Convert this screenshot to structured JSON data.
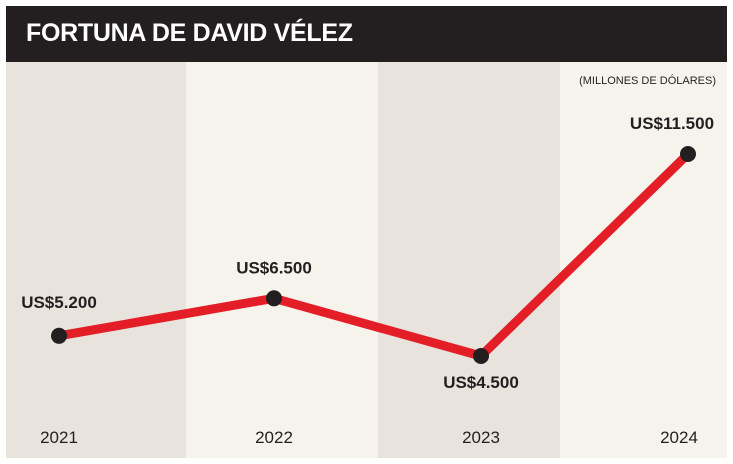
{
  "header": {
    "title": "FORTUNA DE DAVID VÉLEZ"
  },
  "colors": {
    "line": "#e41e26",
    "point": "#231f20",
    "band_dark": "#e8e4dd",
    "band_light": "#f6f3ec",
    "header_bg": "#231f20"
  },
  "chart_data": {
    "type": "line",
    "title": "FORTUNA DE DAVID VÉLEZ",
    "unit_note": "(MILLONES DE DÓLARES)",
    "categories": [
      "2021",
      "2022",
      "2023",
      "2024"
    ],
    "series": [
      {
        "values": [
          5200,
          6500,
          4500,
          11500
        ],
        "labels": [
          "US$5.200",
          "US$6.500",
          "US$4.500",
          "US$11.500"
        ]
      }
    ],
    "ylim": [
      3500,
      12500
    ],
    "grid": false,
    "legend": "none"
  }
}
